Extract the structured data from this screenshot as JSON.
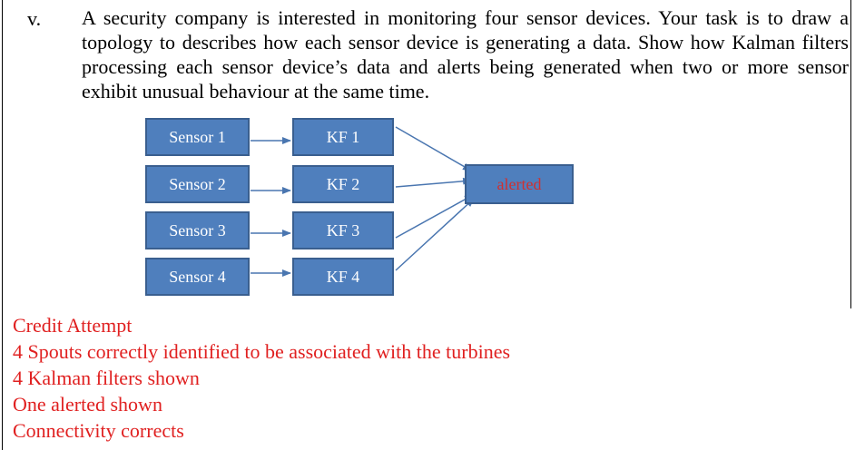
{
  "question": {
    "label": "v.",
    "text": "A security company is interested in monitoring four sensor devices. Your task is to draw a topology to describes how each sensor device is generating a data. Show how Kalman filters processing each sensor device’s data and alerts being generated when two or more sensor exhibit unusual behaviour at the same time."
  },
  "diagram": {
    "sensors": [
      "Sensor 1",
      "Sensor 2",
      "Sensor 3",
      "Sensor 4"
    ],
    "filters": [
      "KF 1",
      "KF 2",
      "KF 3",
      "KF 4"
    ],
    "alert": "alerted",
    "colors": {
      "box_fill": "#4f7fbd",
      "box_border": "#3a5f8f",
      "arrow": "#4a76b0",
      "alert_text": "#d03030"
    }
  },
  "marking": {
    "lines": [
      "Credit Attempt",
      "4 Spouts correctly identified to be associated with the turbines",
      "4 Kalman filters shown",
      "One alerted shown",
      "Connectivity corrects"
    ],
    "color": "#e02020"
  }
}
